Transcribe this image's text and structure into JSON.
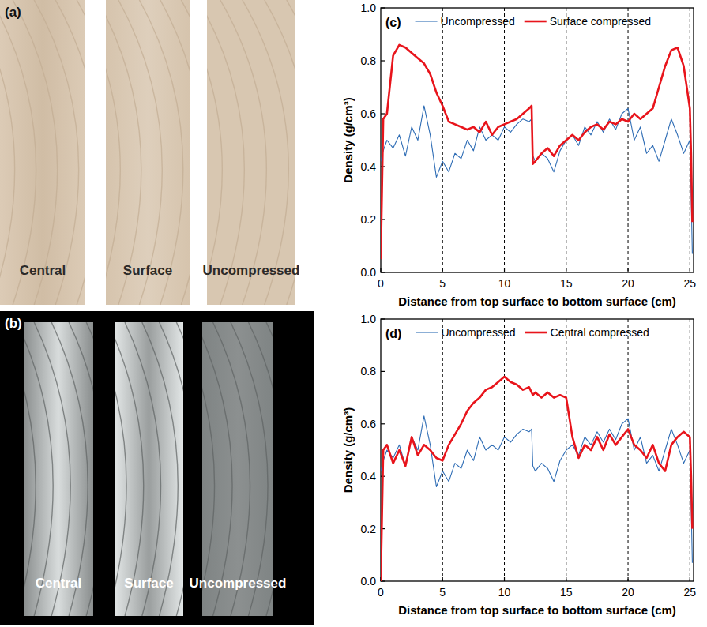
{
  "panels": [
    {
      "letter": "(a)",
      "labels": [
        "Central",
        "Surface",
        "Uncompressed"
      ]
    },
    {
      "letter": "(b)",
      "labels": [
        "Central",
        "Surface",
        "Uncompressed"
      ]
    }
  ],
  "chart_data": [
    {
      "type": "line",
      "panel": "(c)",
      "xlabel": "Distance from top surface to bottom surface (cm)",
      "ylabel": "Density (g/cm³)",
      "xlim": [
        0,
        25.3
      ],
      "xticks": [
        0,
        5,
        10,
        15,
        20,
        25
      ],
      "ylim": [
        0,
        1
      ],
      "yticks": [
        {
          "value": 0,
          "label": "0.0"
        },
        0.2,
        0.4,
        0.6,
        0.8,
        {
          "value": 1,
          "label": "1.0"
        }
      ],
      "grid": true,
      "legend": "top",
      "x": [
        0,
        0.2,
        0.5,
        1,
        1.5,
        2,
        2.5,
        3,
        3.5,
        4,
        4.5,
        5,
        5.5,
        6,
        6.5,
        7,
        7.5,
        8,
        8.5,
        9,
        9.5,
        10,
        10.5,
        11,
        11.5,
        12,
        12.2,
        12.3,
        12.5,
        13,
        13.5,
        14,
        14.5,
        15,
        15.5,
        16,
        16.5,
        17,
        17.5,
        18,
        18.5,
        19,
        19.5,
        20,
        20.5,
        21,
        21.5,
        22,
        22.5,
        23,
        23.5,
        24,
        24.5,
        25,
        25.1,
        25.2
      ],
      "series": [
        {
          "name": "Uncompressed",
          "color": "#2f6db5",
          "values": [
            0.42,
            0.46,
            0.5,
            0.47,
            0.52,
            0.44,
            0.55,
            0.5,
            0.63,
            0.52,
            0.36,
            0.42,
            0.38,
            0.45,
            0.43,
            0.5,
            0.46,
            0.55,
            0.5,
            0.52,
            0.5,
            0.55,
            0.53,
            0.56,
            0.58,
            0.57,
            0.58,
            0.44,
            0.42,
            0.45,
            0.43,
            0.38,
            0.46,
            0.5,
            0.52,
            0.48,
            0.55,
            0.52,
            0.57,
            0.53,
            0.58,
            0.54,
            0.6,
            0.62,
            0.5,
            0.55,
            0.45,
            0.48,
            0.42,
            0.5,
            0.58,
            0.52,
            0.45,
            0.5,
            0.3,
            0.07
          ]
        },
        {
          "name": "Surface compressed",
          "color": "#e8141b",
          "values": [
            0.05,
            0.58,
            0.6,
            0.82,
            0.86,
            0.85,
            0.83,
            0.81,
            0.79,
            0.75,
            0.68,
            0.63,
            0.57,
            0.56,
            0.55,
            0.54,
            0.55,
            0.53,
            0.57,
            0.52,
            0.55,
            0.56,
            0.57,
            0.58,
            0.6,
            0.62,
            0.63,
            0.41,
            0.42,
            0.45,
            0.47,
            0.44,
            0.48,
            0.5,
            0.52,
            0.5,
            0.53,
            0.55,
            0.56,
            0.54,
            0.57,
            0.56,
            0.58,
            0.57,
            0.6,
            0.58,
            0.6,
            0.62,
            0.7,
            0.78,
            0.84,
            0.85,
            0.78,
            0.62,
            0.45,
            0.19
          ]
        }
      ]
    },
    {
      "type": "line",
      "panel": "(d)",
      "xlabel": "Distance from top surface to bottom surface (cm)",
      "ylabel": "Density (g/cm³)",
      "xlim": [
        0,
        25.3
      ],
      "xticks": [
        0,
        5,
        10,
        15,
        20,
        25
      ],
      "ylim": [
        0,
        1
      ],
      "yticks": [
        {
          "value": 0,
          "label": "0.0"
        },
        0.2,
        0.4,
        0.6,
        0.8,
        {
          "value": 1,
          "label": "1.0"
        }
      ],
      "grid": true,
      "legend": "top",
      "x": [
        0,
        0.2,
        0.5,
        1,
        1.5,
        2,
        2.5,
        3,
        3.5,
        4,
        4.5,
        5,
        5.5,
        6,
        6.5,
        7,
        7.5,
        8,
        8.5,
        9,
        9.5,
        10,
        10.5,
        11,
        11.5,
        12,
        12.2,
        12.3,
        12.5,
        13,
        13.5,
        14,
        14.5,
        15,
        15.5,
        16,
        16.5,
        17,
        17.5,
        18,
        18.5,
        19,
        19.5,
        20,
        20.5,
        21,
        21.5,
        22,
        22.5,
        23,
        23.5,
        24,
        24.5,
        25,
        25.1,
        25.2
      ],
      "series": [
        {
          "name": "Uncompressed",
          "color": "#2f6db5",
          "values": [
            0.42,
            0.46,
            0.5,
            0.47,
            0.52,
            0.44,
            0.55,
            0.5,
            0.63,
            0.52,
            0.36,
            0.42,
            0.38,
            0.45,
            0.43,
            0.5,
            0.46,
            0.55,
            0.5,
            0.52,
            0.5,
            0.55,
            0.53,
            0.56,
            0.58,
            0.57,
            0.58,
            0.44,
            0.42,
            0.45,
            0.43,
            0.38,
            0.46,
            0.5,
            0.52,
            0.48,
            0.55,
            0.52,
            0.57,
            0.53,
            0.58,
            0.54,
            0.6,
            0.62,
            0.5,
            0.55,
            0.45,
            0.48,
            0.42,
            0.5,
            0.58,
            0.52,
            0.45,
            0.5,
            0.3,
            0.07
          ]
        },
        {
          "name": "Central compressed",
          "color": "#e8141b",
          "values": [
            0.0,
            0.5,
            0.52,
            0.45,
            0.5,
            0.44,
            0.55,
            0.48,
            0.52,
            0.5,
            0.47,
            0.46,
            0.52,
            0.56,
            0.6,
            0.65,
            0.68,
            0.7,
            0.73,
            0.74,
            0.76,
            0.78,
            0.76,
            0.75,
            0.73,
            0.74,
            0.72,
            0.71,
            0.72,
            0.7,
            0.72,
            0.7,
            0.71,
            0.7,
            0.55,
            0.47,
            0.52,
            0.5,
            0.55,
            0.5,
            0.56,
            0.52,
            0.55,
            0.58,
            0.52,
            0.5,
            0.47,
            0.52,
            0.45,
            0.42,
            0.52,
            0.55,
            0.57,
            0.55,
            0.4,
            0.2
          ]
        }
      ]
    }
  ]
}
